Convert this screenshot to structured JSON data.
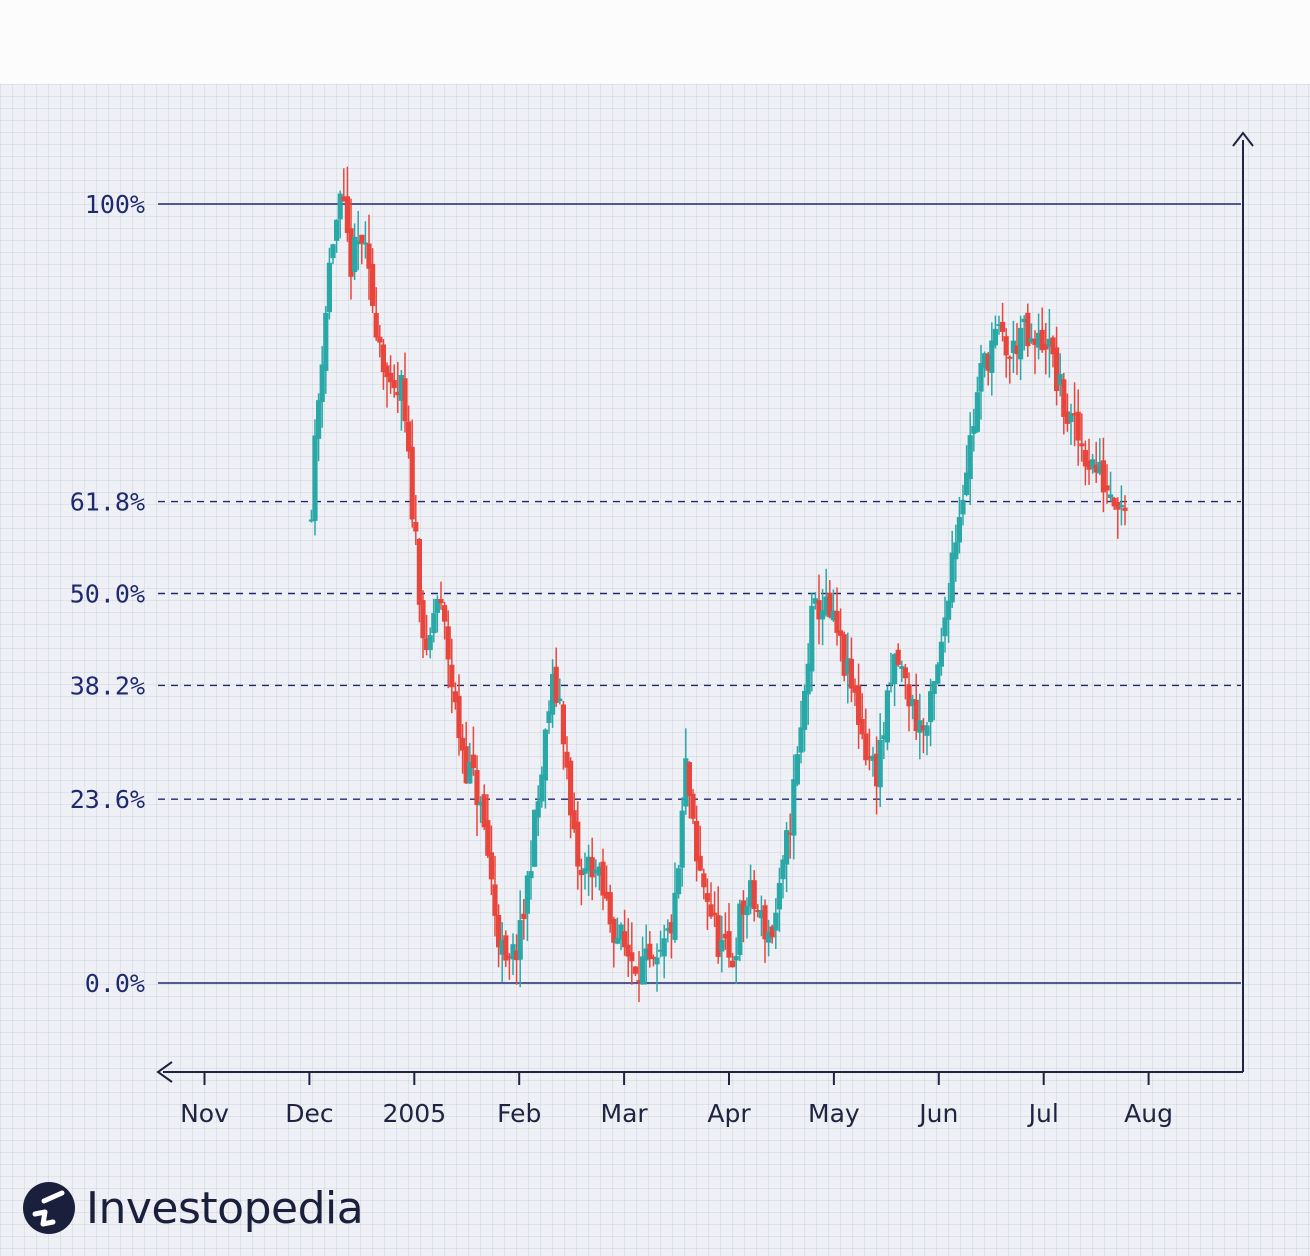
{
  "brand": {
    "name": "Investopedia",
    "icon": "investopedia-logo-icon"
  },
  "colors": {
    "up": "#2aa8a8",
    "down": "#e8463c",
    "level_line": "#1f2a6e",
    "axis": "#1f2440"
  },
  "chart_data": {
    "type": "candlestick",
    "title": "",
    "xlabel": "",
    "ylabel": "",
    "x_ticks": [
      "Nov",
      "Dec",
      "2005",
      "Feb",
      "Mar",
      "Apr",
      "May",
      "Jun",
      "Jul",
      "Aug"
    ],
    "levels": [
      {
        "label": "100%",
        "value": 100,
        "style": "solid"
      },
      {
        "label": "61.8%",
        "value": 61.8,
        "style": "dashed"
      },
      {
        "label": "50.0%",
        "value": 50.0,
        "style": "dashed"
      },
      {
        "label": "38.2%",
        "value": 38.2,
        "style": "dashed"
      },
      {
        "label": "23.6%",
        "value": 23.6,
        "style": "dashed"
      },
      {
        "label": "0.0%",
        "value": 0,
        "style": "solid"
      }
    ],
    "ylim": [
      -11.5,
      109.5
    ],
    "price_path_percent": [
      [
        "Dec",
        62
      ],
      [
        "Dec",
        80
      ],
      [
        "Dec",
        95
      ],
      [
        "Dec",
        100
      ],
      [
        "Dec",
        92
      ],
      [
        "Dec",
        96
      ],
      [
        "Dec",
        88
      ],
      [
        "Dec",
        82
      ],
      [
        "Dec",
        74
      ],
      [
        "Dec",
        76
      ],
      [
        "2005",
        56
      ],
      [
        "2005",
        40
      ],
      [
        "2005",
        50
      ],
      [
        "2005",
        44
      ],
      [
        "2005",
        34
      ],
      [
        "2005",
        28
      ],
      [
        "2005",
        25
      ],
      [
        "2005",
        18
      ],
      [
        "2005",
        8
      ],
      [
        "2005",
        1
      ],
      [
        "Feb",
        6
      ],
      [
        "Feb",
        17
      ],
      [
        "Feb",
        26
      ],
      [
        "Feb",
        38
      ],
      [
        "Feb",
        36
      ],
      [
        "Feb",
        20
      ],
      [
        "Feb",
        13
      ],
      [
        "Feb",
        16
      ],
      [
        "Feb",
        12
      ],
      [
        "Feb",
        8
      ],
      [
        "Mar",
        4
      ],
      [
        "Mar",
        3
      ],
      [
        "Mar",
        2
      ],
      [
        "Mar",
        1
      ],
      [
        "Mar",
        5
      ],
      [
        "Mar",
        10
      ],
      [
        "Mar",
        28
      ],
      [
        "Mar",
        15
      ],
      [
        "Mar",
        12
      ],
      [
        "Mar",
        6
      ],
      [
        "Apr",
        2
      ],
      [
        "Apr",
        9
      ],
      [
        "Apr",
        11
      ],
      [
        "Apr",
        8
      ],
      [
        "Apr",
        6
      ],
      [
        "Apr",
        12
      ],
      [
        "Apr",
        22
      ],
      [
        "Apr",
        32
      ],
      [
        "Apr",
        46
      ],
      [
        "Apr",
        49
      ],
      [
        "May",
        45
      ],
      [
        "May",
        40
      ],
      [
        "May",
        36
      ],
      [
        "May",
        30
      ],
      [
        "May",
        27
      ],
      [
        "May",
        34
      ],
      [
        "May",
        42
      ],
      [
        "May",
        38
      ],
      [
        "May",
        34
      ],
      [
        "May",
        32
      ],
      [
        "Jun",
        42
      ],
      [
        "Jun",
        54
      ],
      [
        "Jun",
        62
      ],
      [
        "Jun",
        70
      ],
      [
        "Jun",
        78
      ],
      [
        "Jun",
        82
      ],
      [
        "Jun",
        83
      ],
      [
        "Jun",
        80
      ],
      [
        "Jun",
        84
      ],
      [
        "Jun",
        81
      ],
      [
        "Jul",
        83
      ],
      [
        "Jul",
        73
      ],
      [
        "Jul",
        68
      ],
      [
        "Jul",
        64
      ],
      [
        "Jul",
        62
      ]
    ]
  }
}
